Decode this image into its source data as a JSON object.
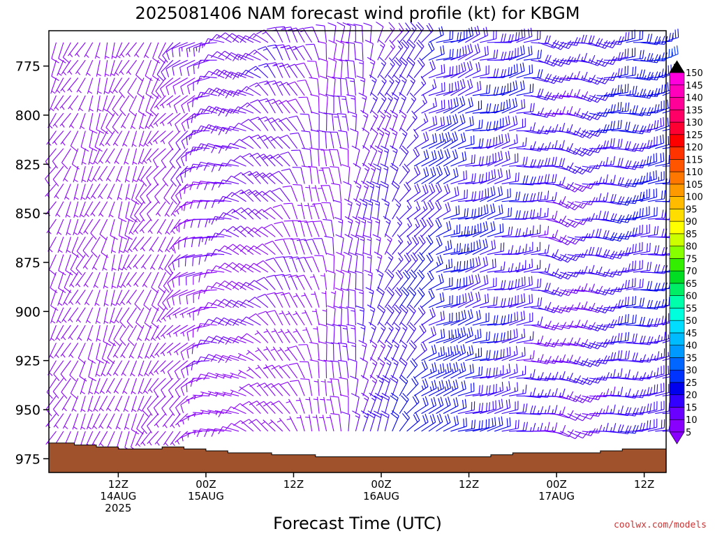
{
  "chart_data": {
    "type": "wind-barb time-height profile",
    "title": "2025081406 NAM forecast wind profile (kt) for KBGM",
    "xlabel": "Forecast Time (UTC)",
    "ylabel": "",
    "y_axis": {
      "unit": "hPa",
      "ticks": [
        775,
        800,
        825,
        850,
        875,
        900,
        925,
        950,
        975
      ],
      "range": [
        757,
        982
      ],
      "inverted": true
    },
    "x_axis": {
      "range_hours": [
        -3.5,
        81
      ],
      "tick_labels": [
        {
          "hour": 6,
          "lines": [
            "12Z",
            "14AUG",
            "2025"
          ]
        },
        {
          "hour": 18,
          "lines": [
            "00Z",
            "15AUG"
          ]
        },
        {
          "hour": 30,
          "lines": [
            "12Z"
          ]
        },
        {
          "hour": 42,
          "lines": [
            "00Z",
            "16AUG"
          ]
        },
        {
          "hour": 54,
          "lines": [
            "12Z"
          ]
        },
        {
          "hour": 66,
          "lines": [
            "00Z",
            "17AUG"
          ]
        },
        {
          "hour": 78,
          "lines": [
            "12Z"
          ]
        }
      ]
    },
    "colorbar": {
      "unit": "kt",
      "levels": [
        5,
        10,
        15,
        20,
        25,
        30,
        35,
        40,
        45,
        50,
        55,
        60,
        65,
        70,
        75,
        80,
        85,
        90,
        95,
        100,
        105,
        110,
        115,
        120,
        125,
        130,
        135,
        140,
        145,
        150
      ],
      "colors": [
        "#8a00ff",
        "#6a00ff",
        "#3300ff",
        "#0000ee",
        "#0033ff",
        "#0066ff",
        "#0099ff",
        "#00bbff",
        "#00ddff",
        "#00ffdd",
        "#00ffaa",
        "#00ee66",
        "#00dd22",
        "#33ee00",
        "#88ff00",
        "#ccff00",
        "#ffff00",
        "#ffdd00",
        "#ffbb00",
        "#ff9900",
        "#ff7700",
        "#ff5500",
        "#ff3300",
        "#ff0000",
        "#ff0033",
        "#ff0066",
        "#ff0099",
        "#ff00bb",
        "#ff00dd",
        "#ff00ff"
      ],
      "cap_bottom": "#8a00ff",
      "cap_top": "#000000"
    },
    "surface_pressure_hPa": [
      {
        "h": -3.5,
        "p": 967
      },
      {
        "h": 0,
        "p": 968
      },
      {
        "h": 3,
        "p": 969
      },
      {
        "h": 6,
        "p": 970
      },
      {
        "h": 9,
        "p": 970
      },
      {
        "h": 12,
        "p": 969
      },
      {
        "h": 15,
        "p": 970
      },
      {
        "h": 18,
        "p": 971
      },
      {
        "h": 21,
        "p": 972
      },
      {
        "h": 24,
        "p": 972
      },
      {
        "h": 27,
        "p": 973
      },
      {
        "h": 30,
        "p": 973
      },
      {
        "h": 33,
        "p": 974
      },
      {
        "h": 36,
        "p": 974
      },
      {
        "h": 42,
        "p": 974
      },
      {
        "h": 48,
        "p": 974
      },
      {
        "h": 54,
        "p": 974
      },
      {
        "h": 57,
        "p": 973
      },
      {
        "h": 60,
        "p": 972
      },
      {
        "h": 63,
        "p": 972
      },
      {
        "h": 66,
        "p": 972
      },
      {
        "h": 69,
        "p": 972
      },
      {
        "h": 72,
        "p": 971
      },
      {
        "h": 75,
        "p": 970
      },
      {
        "h": 78,
        "p": 970
      },
      {
        "h": 81,
        "p": 969
      }
    ],
    "wind_field_keyframes": [
      {
        "h": -3,
        "dir": 210,
        "spd_low": 7,
        "spd_high": 6
      },
      {
        "h": 6,
        "dir": 200,
        "spd_low": 6,
        "spd_high": 6
      },
      {
        "h": 14,
        "dir": 220,
        "spd_low": 6,
        "spd_high": 9
      },
      {
        "h": 20,
        "dir": 280,
        "spd_low": 8,
        "spd_high": 14
      },
      {
        "h": 28,
        "dir": 320,
        "spd_low": 6,
        "spd_high": 14
      },
      {
        "h": 34,
        "dir": 350,
        "spd_low": 6,
        "spd_high": 10
      },
      {
        "h": 42,
        "dir": 20,
        "spd_low": 18,
        "spd_high": 14
      },
      {
        "h": 50,
        "dir": 70,
        "spd_low": 24,
        "spd_high": 20
      },
      {
        "h": 60,
        "dir": 80,
        "spd_low": 16,
        "spd_high": 20
      },
      {
        "h": 66,
        "dir": 110,
        "spd_low": 12,
        "spd_high": 16
      },
      {
        "h": 74,
        "dir": 90,
        "spd_low": 18,
        "spd_high": 22
      },
      {
        "h": 81,
        "dir": 80,
        "spd_low": 16,
        "spd_high": 24
      }
    ],
    "barb_time_step_hours": 1,
    "barb_level_step_hPa": 9
  },
  "credit": "coolwx.com/models"
}
